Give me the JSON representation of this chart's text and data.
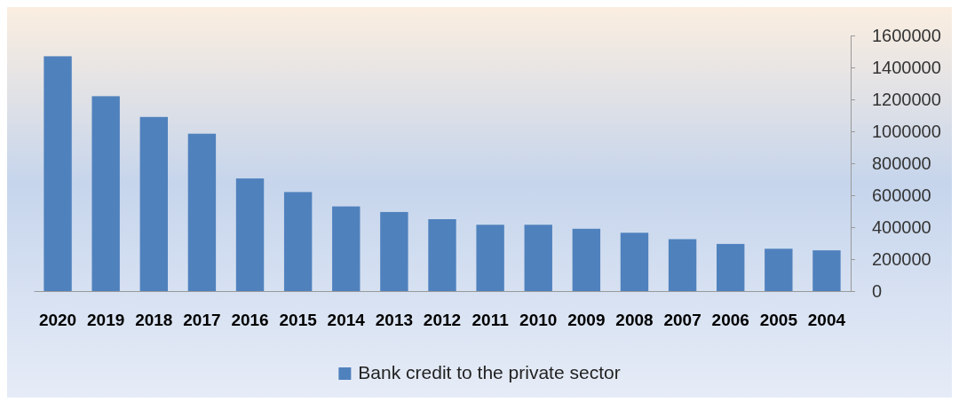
{
  "chart_data": {
    "type": "bar",
    "categories": [
      "2020",
      "2019",
      "2018",
      "2017",
      "2016",
      "2015",
      "2014",
      "2013",
      "2012",
      "2011",
      "2010",
      "2009",
      "2008",
      "2007",
      "2006",
      "2005",
      "2004"
    ],
    "series": [
      {
        "name": "Bank credit to the private sector",
        "color": "#4f81bd",
        "values": [
          1470000,
          1220000,
          1090000,
          985000,
          705000,
          620000,
          530000,
          495000,
          450000,
          415000,
          415000,
          390000,
          365000,
          325000,
          295000,
          265000,
          255000
        ]
      }
    ],
    "ylim": [
      0,
      1600000
    ],
    "yticks": [
      0,
      200000,
      400000,
      600000,
      800000,
      1000000,
      1200000,
      1400000,
      1600000
    ],
    "grid": false,
    "legend": "bottom"
  }
}
